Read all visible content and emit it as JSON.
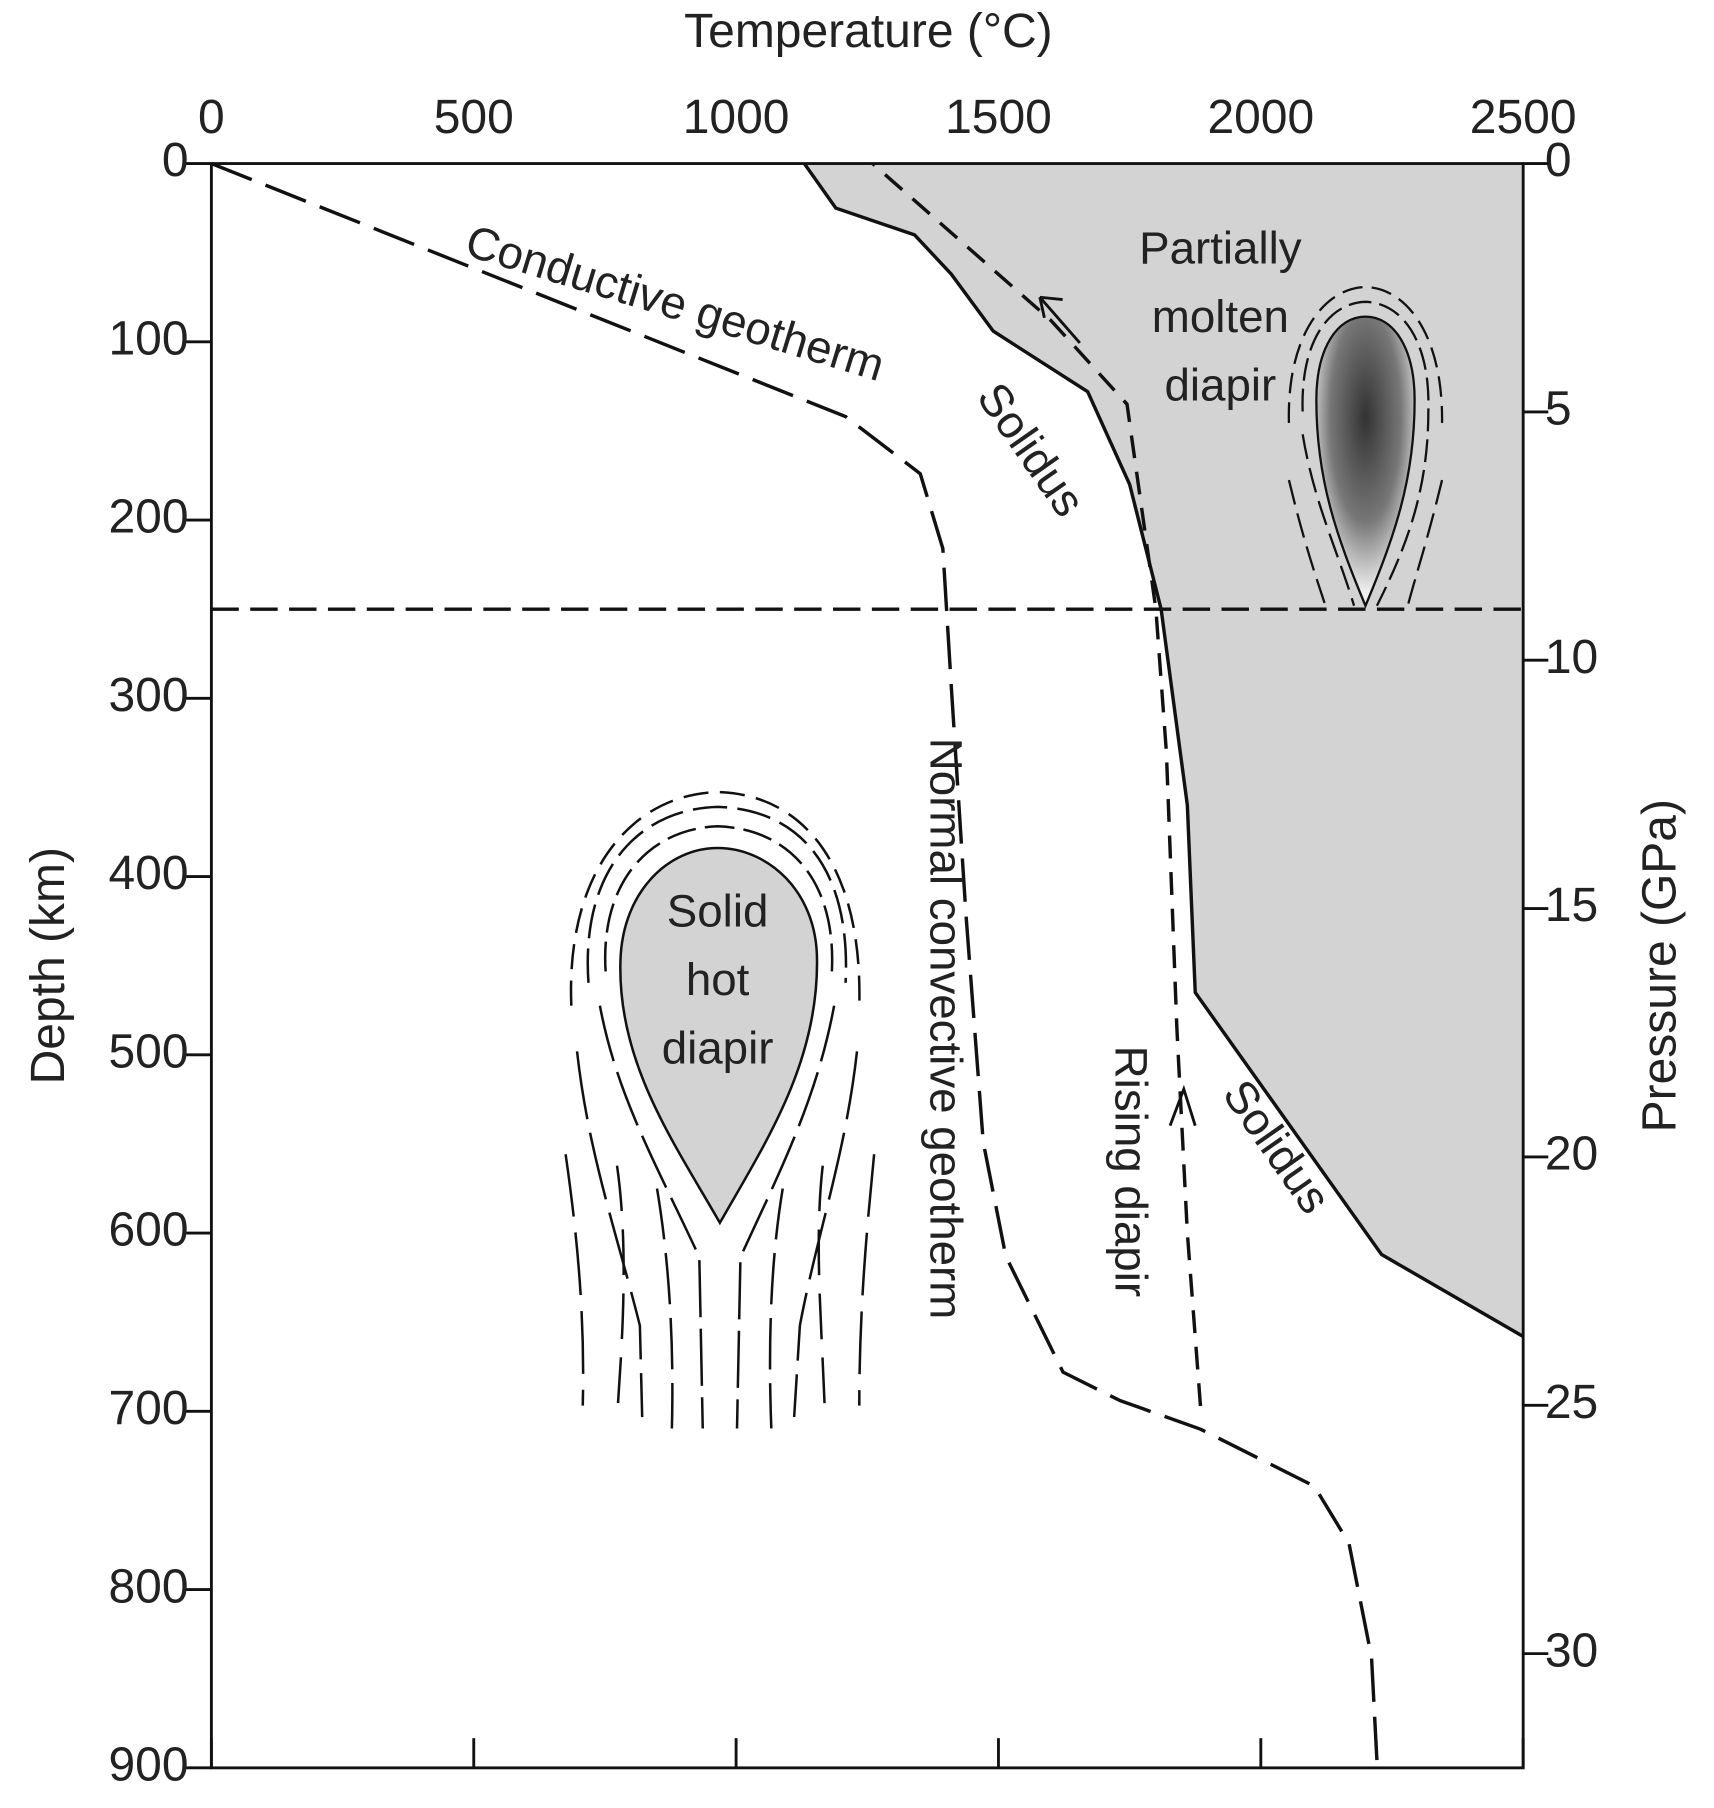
{
  "chart_data": {
    "type": "line",
    "x_label": "Temperature (°C)",
    "y_label": "Depth (km)",
    "y2_label": "Pressure (GPa)",
    "xlim": [
      0,
      2500
    ],
    "xticks": [
      0,
      500,
      1000,
      1500,
      2000,
      2500
    ],
    "ylim": [
      0,
      900
    ],
    "yticks": [
      0,
      100,
      200,
      300,
      400,
      500,
      600,
      700,
      800,
      900
    ],
    "y_inverted": true,
    "y2lim": [
      0,
      32.3
    ],
    "y2ticks": [
      0,
      5,
      10,
      15,
      20,
      25,
      30
    ],
    "series": [
      {
        "color": "#111111",
        "dash": "long",
        "x": [
          0,
          1209,
          1351,
          1394,
          1410,
          1438,
          1471,
          1514,
          1623,
          1732,
          1885,
          2102,
          2168,
          2211,
          2222
        ],
        "values": [
          0,
          142,
          174,
          216,
          293,
          421,
          549,
          613,
          678,
          694,
          710,
          742,
          774,
          838,
          900
        ]
      },
      {
        "color": "#111111",
        "dash": "solid",
        "fill": "#d3d3d3",
        "x": [
          1130,
          1190,
          1340,
          1410,
          1490,
          1670,
          1750,
          1810,
          1860,
          1875,
          2230,
          2500
        ],
        "values": [
          0,
          25,
          40,
          62,
          94,
          128,
          180,
          250,
          360,
          465,
          612,
          658
        ]
      },
      {
        "color": "#111111",
        "dash": "short",
        "x": [
          1885,
          1860,
          1840,
          1820,
          1800,
          1745,
          1600,
          1260
        ],
        "values": [
          697,
          600,
          485,
          330,
          250,
          135,
          88,
          0
        ]
      },
      {
        "color": "#111111",
        "dash": "medium",
        "x": [
          0,
          2500
        ],
        "values": [
          250,
          250
        ]
      }
    ],
    "annotations": [
      "Conductive geotherm",
      "Solidus",
      "Normal convective geotherm",
      "Rising diapir",
      "Solidus",
      [
        "Partially",
        "molten",
        "diapir"
      ],
      [
        "Solid",
        "hot",
        "diapir"
      ]
    ]
  }
}
